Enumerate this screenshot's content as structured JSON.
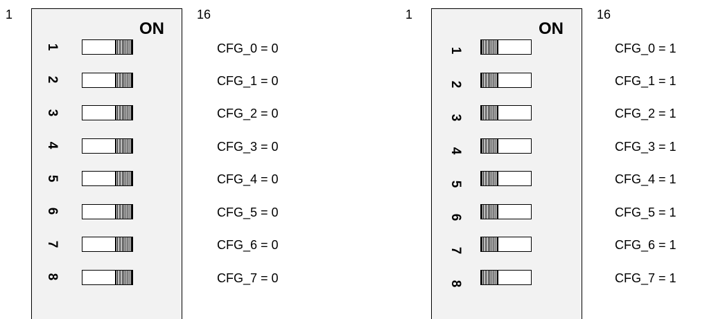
{
  "left": {
    "pin_first": "1",
    "pin_last": "16",
    "on_label": "ON",
    "switches": [
      {
        "num": "1",
        "label": "CFG_0 = 0",
        "state": "off"
      },
      {
        "num": "2",
        "label": "CFG_1 = 0",
        "state": "off"
      },
      {
        "num": "3",
        "label": "CFG_2 = 0",
        "state": "off"
      },
      {
        "num": "4",
        "label": "CFG_3 = 0",
        "state": "off"
      },
      {
        "num": "5",
        "label": "CFG_4 = 0",
        "state": "off"
      },
      {
        "num": "6",
        "label": "CFG_5 = 0",
        "state": "off"
      },
      {
        "num": "7",
        "label": "CFG_6 = 0",
        "state": "off"
      },
      {
        "num": "8",
        "label": "CFG_7 = 0",
        "state": "off"
      }
    ]
  },
  "right": {
    "pin_first": "1",
    "pin_last": "16",
    "on_label": "ON",
    "switches": [
      {
        "num": "1",
        "label": "CFG_0 = 1",
        "state": "on"
      },
      {
        "num": "2",
        "label": "CFG_1 = 1",
        "state": "on"
      },
      {
        "num": "3",
        "label": "CFG_2 = 1",
        "state": "on"
      },
      {
        "num": "4",
        "label": "CFG_3 = 1",
        "state": "on"
      },
      {
        "num": "5",
        "label": "CFG_4 = 1",
        "state": "on"
      },
      {
        "num": "6",
        "label": "CFG_5 = 1",
        "state": "on"
      },
      {
        "num": "7",
        "label": "CFG_6 = 1",
        "state": "on"
      },
      {
        "num": "8",
        "label": "CFG_7 = 1",
        "state": "on"
      }
    ]
  }
}
